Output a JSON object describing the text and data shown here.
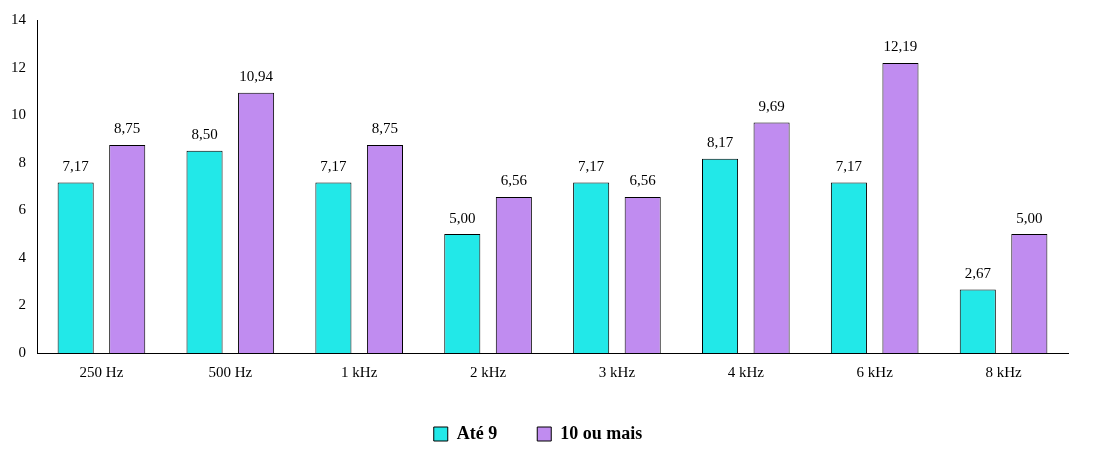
{
  "chart_data": {
    "type": "bar",
    "categories": [
      "250 Hz",
      "500 Hz",
      "1 kHz",
      "2 kHz",
      "3 kHz",
      "4 kHz",
      "6 kHz",
      "8 kHz"
    ],
    "series": [
      {
        "name": "Até 9",
        "color": "#22e8e8",
        "values": [
          7.17,
          8.5,
          7.17,
          5.0,
          7.17,
          8.17,
          7.17,
          2.67
        ],
        "value_labels": [
          "7,17",
          "8,50",
          "7,17",
          "5,00",
          "7,17",
          "8,17",
          "7,17",
          "2,67"
        ]
      },
      {
        "name": "10 ou mais",
        "color": "#c08cf0",
        "values": [
          8.75,
          10.94,
          8.75,
          6.56,
          6.56,
          9.69,
          12.19,
          5.0
        ],
        "value_labels": [
          "8,75",
          "10,94",
          "8,75",
          "6,56",
          "6,56",
          "9,69",
          "12,19",
          "5,00"
        ]
      }
    ],
    "ylim": [
      0,
      14
    ],
    "yticks": [
      0,
      2,
      4,
      6,
      8,
      10,
      12,
      14
    ],
    "grid": false,
    "legend": "bottom"
  }
}
